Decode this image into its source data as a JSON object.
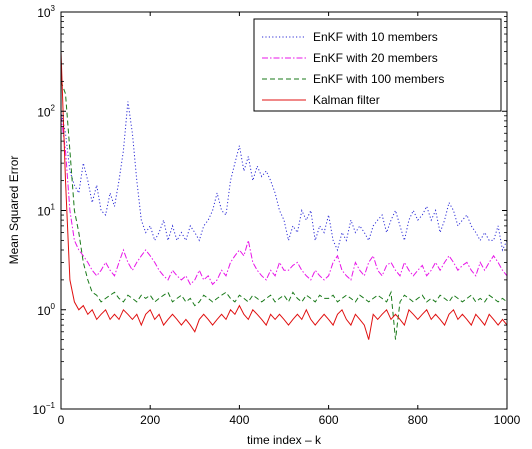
{
  "chart_data": {
    "type": "line",
    "title": "",
    "xlabel": "time index – k",
    "ylabel": "Mean Squared Error",
    "x_range": [
      0,
      1000
    ],
    "y_range": [
      0.1,
      1000
    ],
    "y_scale": "log",
    "grid": false,
    "legend_position": "top-right",
    "x_ticks": [
      {
        "value": 0,
        "label": "0"
      },
      {
        "value": 200,
        "label": "200"
      },
      {
        "value": 400,
        "label": "400"
      },
      {
        "value": 600,
        "label": "600"
      },
      {
        "value": 800,
        "label": "800"
      },
      {
        "value": 1000,
        "label": "1000"
      }
    ],
    "y_ticks": [
      {
        "value": 0.1,
        "base": "10",
        "exp": "−1"
      },
      {
        "value": 1,
        "base": "10",
        "exp": "0"
      },
      {
        "value": 10,
        "base": "10",
        "exp": "1"
      },
      {
        "value": 100,
        "base": "10",
        "exp": "2"
      },
      {
        "value": 1000,
        "base": "10",
        "exp": "3"
      }
    ],
    "series": [
      {
        "name": "EnKF with 10 members",
        "color": "#2b2bd6",
        "dash": "1.2 2.2",
        "x": [
          0,
          10,
          20,
          30,
          40,
          50,
          60,
          70,
          80,
          90,
          100,
          110,
          120,
          130,
          140,
          150,
          160,
          170,
          180,
          190,
          200,
          210,
          220,
          230,
          240,
          250,
          260,
          270,
          280,
          290,
          300,
          310,
          320,
          330,
          340,
          350,
          360,
          370,
          380,
          390,
          400,
          410,
          420,
          430,
          440,
          450,
          460,
          470,
          480,
          490,
          500,
          510,
          520,
          530,
          540,
          550,
          560,
          570,
          580,
          590,
          600,
          610,
          620,
          630,
          640,
          650,
          660,
          670,
          680,
          690,
          700,
          710,
          720,
          730,
          740,
          750,
          760,
          770,
          780,
          790,
          800,
          810,
          820,
          830,
          840,
          850,
          860,
          870,
          880,
          890,
          900,
          910,
          920,
          930,
          940,
          950,
          960,
          970,
          980,
          990,
          1000
        ],
        "y": [
          100,
          60,
          25,
          18,
          15,
          30,
          20,
          12,
          18,
          10,
          9,
          15,
          11,
          20,
          40,
          125,
          60,
          20,
          8,
          6,
          7,
          5,
          6,
          8,
          5,
          7,
          5,
          6,
          5,
          7,
          6,
          5,
          7,
          8,
          10,
          15,
          10,
          9,
          20,
          30,
          45,
          25,
          35,
          20,
          28,
          22,
          25,
          20,
          15,
          10,
          8,
          5,
          7,
          6,
          10,
          8,
          10,
          5,
          7,
          6,
          9,
          5,
          4,
          6,
          5,
          8,
          6,
          7,
          6,
          5,
          7,
          8,
          9,
          6,
          8,
          10,
          7,
          5,
          8,
          10,
          8,
          9,
          11,
          8,
          10,
          6,
          8,
          12,
          10,
          7,
          8,
          9,
          7,
          6,
          5,
          6,
          5,
          5,
          7,
          4,
          5
        ]
      },
      {
        "name": "EnKF with 20 members",
        "color": "#e815e8",
        "dash": "6 2 1.5 2",
        "x": [
          0,
          10,
          20,
          30,
          40,
          50,
          60,
          70,
          80,
          90,
          100,
          110,
          120,
          130,
          140,
          150,
          160,
          170,
          180,
          190,
          200,
          210,
          220,
          230,
          240,
          250,
          260,
          270,
          280,
          290,
          300,
          310,
          320,
          330,
          340,
          350,
          360,
          370,
          380,
          390,
          400,
          410,
          420,
          430,
          440,
          450,
          460,
          470,
          480,
          490,
          500,
          510,
          520,
          530,
          540,
          550,
          560,
          570,
          580,
          590,
          600,
          610,
          620,
          630,
          640,
          650,
          660,
          670,
          680,
          690,
          700,
          710,
          720,
          730,
          740,
          750,
          760,
          770,
          780,
          790,
          800,
          810,
          820,
          830,
          840,
          850,
          860,
          870,
          880,
          890,
          900,
          910,
          920,
          930,
          940,
          950,
          960,
          970,
          980,
          990,
          1000
        ],
        "y": [
          90,
          40,
          10,
          5,
          4,
          3.5,
          3,
          2.5,
          2.2,
          2.5,
          3,
          2.5,
          2.2,
          3,
          4,
          3,
          2.5,
          3,
          3.5,
          4,
          3.5,
          3,
          2.5,
          2.2,
          2,
          2.5,
          2.2,
          2,
          2.2,
          1.8,
          2,
          2.5,
          2,
          2.2,
          1.8,
          2,
          2.5,
          2.2,
          3,
          3.5,
          4,
          3.5,
          5,
          3,
          2.5,
          2.2,
          2,
          2.5,
          2.2,
          3,
          2.5,
          2.5,
          2.8,
          3,
          2.5,
          2.2,
          2,
          2.5,
          2.2,
          2,
          2.2,
          3,
          3.5,
          2.5,
          2.2,
          2,
          3,
          2.5,
          2.2,
          3,
          3.5,
          2.5,
          2.2,
          2.8,
          3,
          2.5,
          2.2,
          3,
          2.5,
          2.2,
          2.5,
          2.8,
          2.2,
          2.5,
          3,
          2.5,
          3,
          3.5,
          3,
          2.5,
          2.8,
          3,
          2.5,
          2.2,
          3,
          2.5,
          3,
          3.5,
          3,
          2.5,
          2.2
        ]
      },
      {
        "name": "EnKF with 100 members",
        "color": "#1a7a1a",
        "dash": "5 3",
        "x": [
          0,
          10,
          20,
          30,
          40,
          50,
          60,
          70,
          80,
          90,
          100,
          110,
          120,
          130,
          140,
          150,
          160,
          170,
          180,
          190,
          200,
          210,
          220,
          230,
          240,
          250,
          260,
          270,
          280,
          290,
          300,
          310,
          320,
          330,
          340,
          350,
          360,
          370,
          380,
          390,
          400,
          410,
          420,
          430,
          440,
          450,
          460,
          470,
          480,
          490,
          500,
          510,
          520,
          530,
          540,
          550,
          560,
          570,
          580,
          590,
          600,
          610,
          620,
          630,
          640,
          650,
          660,
          670,
          680,
          690,
          700,
          710,
          720,
          730,
          740,
          750,
          760,
          770,
          780,
          790,
          800,
          810,
          820,
          830,
          840,
          850,
          860,
          870,
          880,
          890,
          900,
          910,
          920,
          930,
          940,
          950,
          960,
          970,
          980,
          990,
          1000
        ],
        "y": [
          200,
          150,
          40,
          10,
          6,
          3,
          2,
          1.5,
          1.4,
          1.2,
          1.3,
          1.4,
          1.5,
          1.3,
          1.2,
          1.4,
          1.3,
          1.2,
          1.4,
          1.3,
          1.4,
          1.2,
          1.3,
          1.4,
          1.5,
          1.2,
          1.3,
          1.4,
          1.2,
          1.3,
          1.1,
          1.2,
          1.4,
          1.3,
          1.2,
          1.3,
          1.4,
          1.5,
          1.3,
          1.2,
          1.4,
          1.3,
          1.2,
          1.4,
          1.3,
          1.2,
          1.3,
          1.4,
          1.2,
          1.3,
          1.4,
          1.2,
          1.5,
          1.3,
          1.2,
          1.4,
          1.3,
          1.2,
          1.4,
          1.3,
          1.3,
          1.4,
          1.2,
          1.3,
          1.4,
          1.3,
          1.2,
          1.4,
          1.3,
          1.2,
          1.3,
          1.4,
          1.3,
          1.2,
          1.5,
          0.5,
          1.2,
          1.4,
          1.3,
          1.2,
          1.3,
          1.4,
          1.2,
          1.3,
          1.2,
          1.4,
          1.3,
          1.2,
          1.4,
          1.3,
          1.2,
          1.3,
          1.4,
          1.2,
          1.3,
          1.2,
          1.4,
          1.3,
          1.2,
          1.3,
          1.2
        ]
      },
      {
        "name": "Kalman filter",
        "color": "#e01010",
        "dash": "",
        "x": [
          0,
          10,
          20,
          30,
          40,
          50,
          60,
          70,
          80,
          90,
          100,
          110,
          120,
          130,
          140,
          150,
          160,
          170,
          180,
          190,
          200,
          210,
          220,
          230,
          240,
          250,
          260,
          270,
          280,
          290,
          300,
          310,
          320,
          330,
          340,
          350,
          360,
          370,
          380,
          390,
          400,
          410,
          420,
          430,
          440,
          450,
          460,
          470,
          480,
          490,
          500,
          510,
          520,
          530,
          540,
          550,
          560,
          570,
          580,
          590,
          600,
          610,
          620,
          630,
          640,
          650,
          660,
          670,
          680,
          690,
          700,
          710,
          720,
          730,
          740,
          750,
          760,
          770,
          780,
          790,
          800,
          810,
          820,
          830,
          840,
          850,
          860,
          870,
          880,
          890,
          900,
          910,
          920,
          930,
          940,
          950,
          960,
          970,
          980,
          990,
          1000
        ],
        "y": [
          400,
          20,
          2,
          1.2,
          1,
          1.1,
          0.9,
          1.0,
          0.8,
          0.9,
          1.0,
          0.8,
          0.9,
          0.8,
          1.0,
          0.9,
          0.8,
          0.9,
          0.7,
          0.9,
          1.0,
          0.8,
          0.9,
          0.7,
          0.8,
          0.9,
          0.8,
          0.7,
          0.8,
          0.7,
          0.6,
          0.8,
          0.9,
          0.8,
          0.7,
          0.8,
          0.9,
          0.8,
          1.0,
          0.9,
          1.1,
          0.9,
          0.8,
          1.0,
          0.9,
          0.8,
          0.7,
          0.9,
          0.8,
          0.9,
          0.8,
          0.7,
          0.8,
          0.9,
          0.8,
          1.0,
          0.8,
          0.7,
          0.8,
          0.9,
          0.8,
          0.7,
          0.9,
          1.0,
          0.8,
          0.7,
          0.9,
          0.8,
          0.7,
          0.5,
          0.9,
          0.8,
          0.9,
          1.0,
          0.8,
          0.9,
          0.8,
          0.7,
          1.0,
          0.9,
          0.8,
          0.9,
          1.0,
          0.8,
          0.9,
          0.8,
          0.7,
          0.9,
          1.0,
          0.8,
          0.9,
          0.8,
          0.7,
          0.9,
          0.8,
          0.7,
          0.9,
          0.8,
          0.7,
          0.8,
          0.7
        ]
      }
    ]
  }
}
